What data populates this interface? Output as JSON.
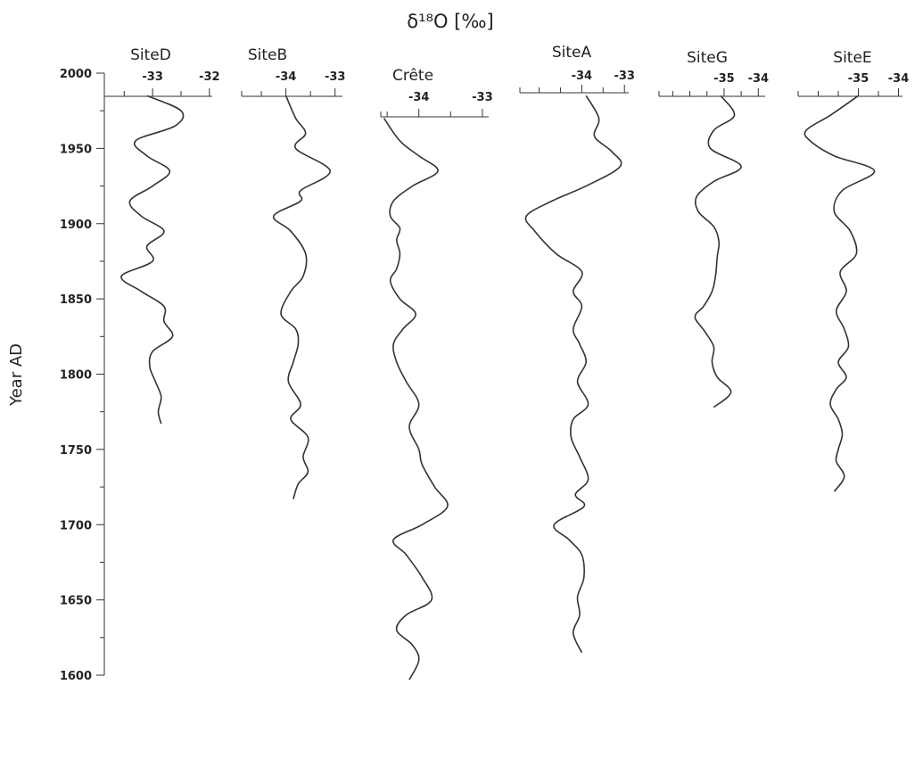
{
  "chart_data": {
    "type": "line",
    "title": "δ¹⁸O [‰]",
    "ylabel": "Year AD",
    "ylim": [
      1600,
      2000
    ],
    "yticks": [
      2000,
      1950,
      1900,
      1850,
      1800,
      1750,
      1700,
      1650,
      1600
    ],
    "yminor_step": 25,
    "panels": [
      {
        "name": "SiteD",
        "xlim": [
          -33.85,
          -31.95
        ],
        "xticks": [
          -33,
          -32
        ],
        "xtick_labels": [
          "-33",
          "-32"
        ],
        "minor_step": 0.5,
        "year_range": [
          1767,
          1985
        ],
        "years": [
          1985,
          1975,
          1965,
          1955,
          1945,
          1935,
          1925,
          1915,
          1905,
          1895,
          1885,
          1875,
          1865,
          1855,
          1845,
          1835,
          1825,
          1815,
          1805,
          1795,
          1785,
          1775,
          1767
        ],
        "values": [
          -33.1,
          -32.5,
          -32.6,
          -33.3,
          -33.1,
          -32.7,
          -33.0,
          -33.4,
          -33.2,
          -32.8,
          -33.1,
          -33.0,
          -33.55,
          -33.2,
          -32.8,
          -32.8,
          -32.65,
          -33.0,
          -33.05,
          -32.95,
          -32.85,
          -32.9,
          -32.85
        ]
      },
      {
        "name": "SiteB",
        "xlim": [
          -34.9,
          -32.85
        ],
        "xticks": [
          -34,
          -33
        ],
        "xtick_labels": [
          "-34",
          "-33"
        ],
        "minor_step": 0.5,
        "year_range": [
          1717,
          1985
        ],
        "years": [
          1985,
          1970,
          1960,
          1950,
          1935,
          1922,
          1915,
          1905,
          1895,
          1880,
          1865,
          1855,
          1840,
          1830,
          1820,
          1808,
          1795,
          1780,
          1770,
          1758,
          1745,
          1735,
          1727,
          1717
        ],
        "values": [
          -34.0,
          -33.8,
          -33.6,
          -33.8,
          -33.1,
          -33.7,
          -33.7,
          -34.25,
          -33.9,
          -33.6,
          -33.65,
          -33.9,
          -34.1,
          -33.8,
          -33.75,
          -33.85,
          -33.95,
          -33.7,
          -33.9,
          -33.55,
          -33.65,
          -33.55,
          -33.75,
          -33.85
        ]
      },
      {
        "name": "Crête",
        "xlim": [
          -34.6,
          -32.9
        ],
        "xticks": [
          -34,
          -33
        ],
        "xtick_labels": [
          "-34",
          "-33"
        ],
        "minor_step": 0.5,
        "year_range": [
          1597,
          1970
        ],
        "years": [
          1970,
          1955,
          1945,
          1935,
          1925,
          1915,
          1905,
          1897,
          1889,
          1880,
          1870,
          1862,
          1850,
          1840,
          1830,
          1820,
          1808,
          1795,
          1780,
          1765,
          1750,
          1740,
          1725,
          1712,
          1700,
          1690,
          1680,
          1665,
          1650,
          1640,
          1630,
          1620,
          1610,
          1597
        ],
        "values": [
          -34.55,
          -34.3,
          -34.0,
          -33.7,
          -34.1,
          -34.4,
          -34.45,
          -34.3,
          -34.35,
          -34.3,
          -34.35,
          -34.45,
          -34.3,
          -34.05,
          -34.25,
          -34.4,
          -34.35,
          -34.2,
          -34.0,
          -34.15,
          -34.0,
          -33.95,
          -33.75,
          -33.55,
          -33.95,
          -34.4,
          -34.2,
          -33.95,
          -33.8,
          -34.2,
          -34.35,
          -34.1,
          -34.0,
          -34.15
        ]
      },
      {
        "name": "SiteA",
        "xlim": [
          -35.45,
          -32.9
        ],
        "xticks": [
          -34,
          -33
        ],
        "xtick_labels": [
          "-34",
          "-33"
        ],
        "minor_step": 0.5,
        "year_range": [
          1615,
          1985
        ],
        "years": [
          1985,
          1970,
          1958,
          1948,
          1938,
          1925,
          1915,
          1905,
          1895,
          1880,
          1868,
          1855,
          1845,
          1830,
          1820,
          1808,
          1795,
          1780,
          1770,
          1758,
          1745,
          1730,
          1720,
          1712,
          1700,
          1690,
          1680,
          1665,
          1652,
          1640,
          1628,
          1615
        ],
        "values": [
          -33.9,
          -33.6,
          -33.7,
          -33.3,
          -33.1,
          -33.9,
          -34.7,
          -35.3,
          -35.1,
          -34.6,
          -34.0,
          -34.2,
          -34.0,
          -34.2,
          -34.05,
          -33.9,
          -34.1,
          -33.85,
          -34.2,
          -34.25,
          -34.05,
          -33.85,
          -34.15,
          -33.95,
          -34.65,
          -34.3,
          -34.0,
          -33.95,
          -34.1,
          -34.05,
          -34.2,
          -34.0
        ]
      },
      {
        "name": "SiteG",
        "xlim": [
          -36.9,
          -33.8
        ],
        "xticks": [
          -35,
          -34
        ],
        "xtick_labels": [
          "-35",
          "-34"
        ],
        "minor_step": 0.5,
        "year_range": [
          1778,
          1985
        ],
        "years": [
          1985,
          1972,
          1962,
          1950,
          1938,
          1928,
          1918,
          1908,
          1898,
          1888,
          1878,
          1865,
          1855,
          1845,
          1838,
          1828,
          1818,
          1808,
          1798,
          1788,
          1778
        ],
        "values": [
          -35.1,
          -34.7,
          -35.3,
          -35.4,
          -34.5,
          -35.3,
          -35.8,
          -35.75,
          -35.3,
          -35.15,
          -35.2,
          -35.25,
          -35.35,
          -35.6,
          -35.85,
          -35.55,
          -35.3,
          -35.35,
          -35.2,
          -34.8,
          -35.3
        ]
      },
      {
        "name": "SiteE",
        "xlim": [
          -36.5,
          -33.9
        ],
        "xticks": [
          -35,
          -34
        ],
        "xtick_labels": [
          "-35",
          "-34"
        ],
        "minor_step": 0.5,
        "year_range": [
          1722,
          1985
        ],
        "years": [
          1985,
          1972,
          1962,
          1955,
          1945,
          1935,
          1922,
          1908,
          1895,
          1880,
          1868,
          1855,
          1842,
          1830,
          1818,
          1808,
          1798,
          1790,
          1780,
          1770,
          1760,
          1750,
          1742,
          1732,
          1722
        ],
        "values": [
          -35.0,
          -35.7,
          -36.3,
          -36.2,
          -35.6,
          -34.6,
          -35.4,
          -35.6,
          -35.2,
          -35.05,
          -35.45,
          -35.3,
          -35.55,
          -35.35,
          -35.25,
          -35.5,
          -35.3,
          -35.55,
          -35.7,
          -35.5,
          -35.4,
          -35.5,
          -35.55,
          -35.35,
          -35.6
        ]
      }
    ]
  }
}
